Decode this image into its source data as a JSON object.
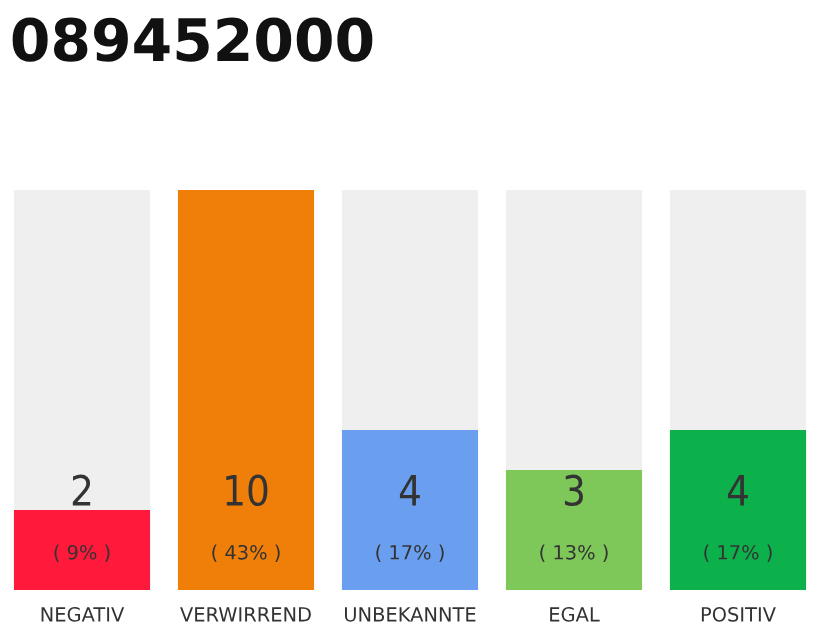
{
  "chart_data": {
    "type": "bar",
    "title": "089452000",
    "stacked": true,
    "tick_labels": "x",
    "legend": false,
    "categories": [
      "NEGATIV",
      "VERWIRREND",
      "UNBEKANNTE",
      "EGAL",
      "POSITIV"
    ],
    "ylim": [
      0,
      10
    ],
    "series": [
      {
        "colors": [
          "#ff1a3c",
          "#f07f0a",
          "#6a9ff0",
          "#7ec85a",
          "#0db14b"
        ],
        "values": [
          2,
          10,
          4,
          3,
          4
        ],
        "value_labels": [
          "2\n( 9% )",
          "10\n( 43% )",
          "4\n( 17% )",
          "3\n( 13% )",
          "4\n( 17% )"
        ]
      },
      {
        "color": "#efefef",
        "values": [
          8,
          0,
          6,
          7,
          6
        ]
      }
    ]
  }
}
